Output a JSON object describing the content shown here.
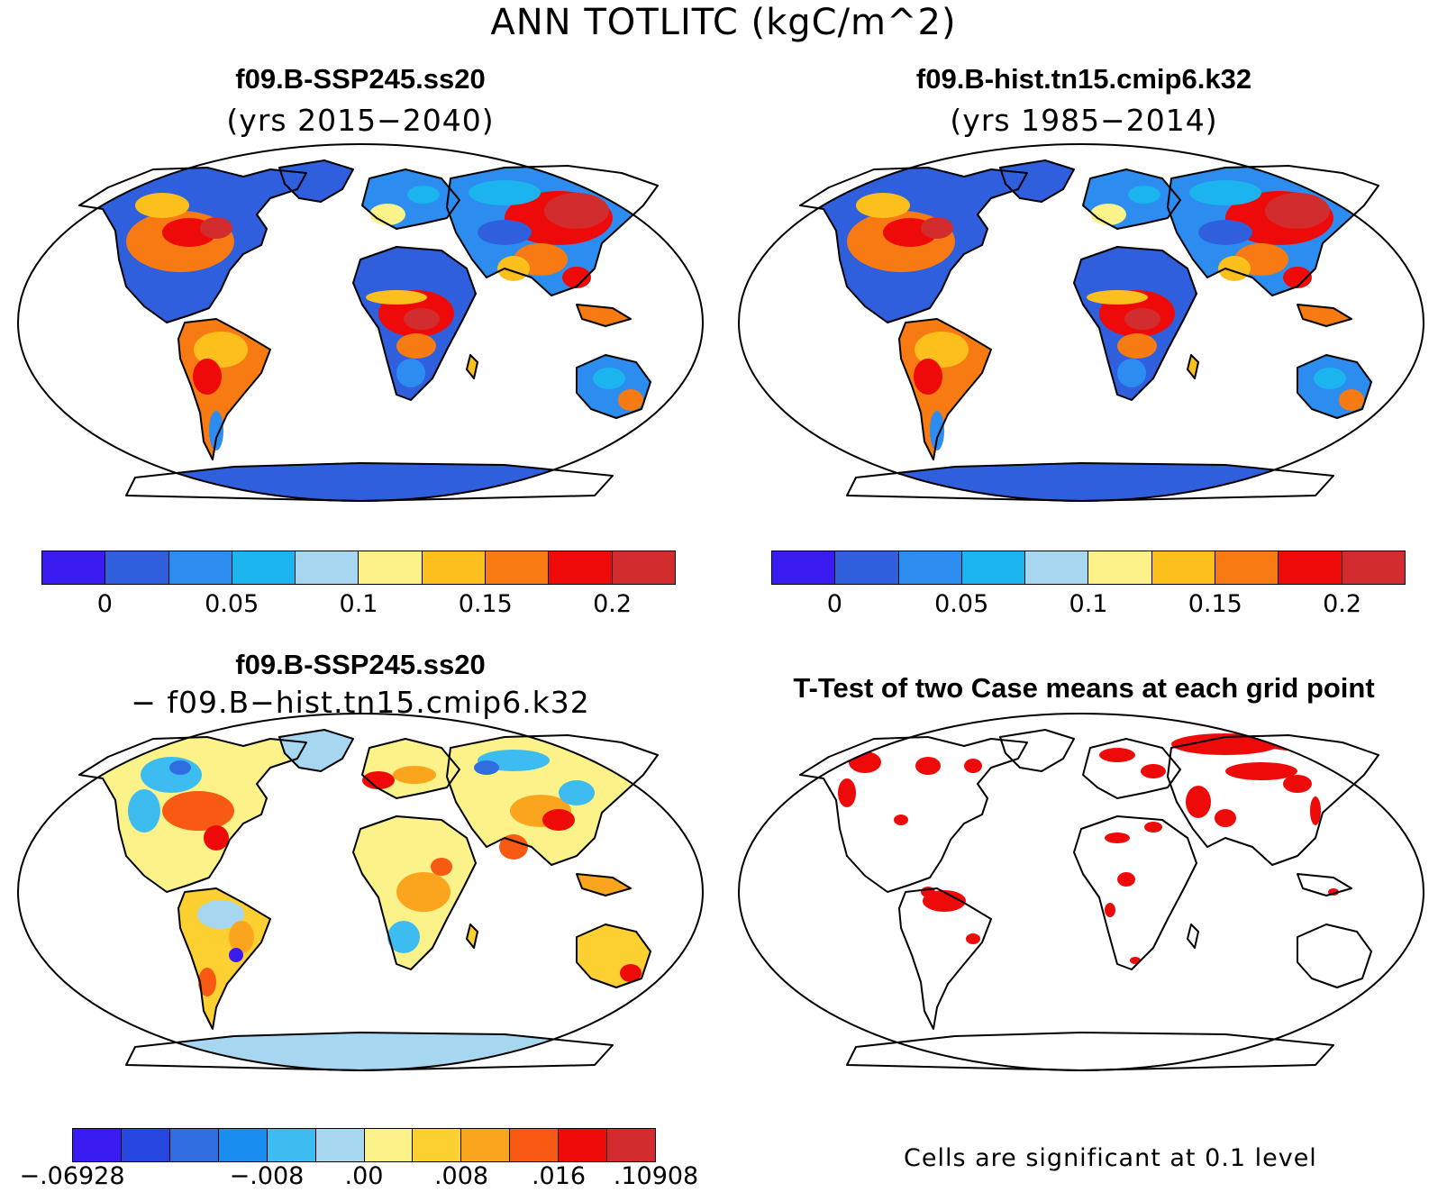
{
  "title": "ANN TOTLITC (kgC/m^2)",
  "panels": [
    {
      "title": "f09.B-SSP245.ss20",
      "subtitle": "(yrs 2015−2040)"
    },
    {
      "title": "f09.B-hist.tn15.cmip6.k32",
      "subtitle": "(yrs 1985−2014)"
    },
    {
      "title": "f09.B-SSP245.ss20",
      "subtitle": "− f09.B−hist.tn15.cmip6.k32"
    },
    {
      "title": "T-Test of two Case means at each grid point",
      "subtitle": ""
    }
  ],
  "colorbar_abs": {
    "colors": [
      "#3a1cf2",
      "#2f5fdc",
      "#2c8cf0",
      "#1bb4ee",
      "#a6d6f0",
      "#fbf38a",
      "#fdbf1c",
      "#f87a12",
      "#ef0a0a",
      "#d22c2e"
    ],
    "ticks": [
      "0",
      "0.05",
      "0.1",
      "0.15",
      "0.2"
    ],
    "tick_positions": [
      1,
      3,
      5,
      7,
      9
    ]
  },
  "colorbar_diff": {
    "colors": [
      "#3a1cf2",
      "#2547e0",
      "#2f6ee0",
      "#1a8ef0",
      "#3cbcf0",
      "#a6d6f0",
      "#fbf38a",
      "#fdd032",
      "#fba41e",
      "#f85a14",
      "#ef0a0a",
      "#d22c2e"
    ],
    "ticks": [
      "−.06928",
      "−.008",
      ".00",
      ".008",
      ".016",
      ".10908"
    ],
    "tick_positions": [
      0,
      4,
      6,
      8,
      10,
      12
    ]
  },
  "note": "Cells are significant at 0.1 level"
}
